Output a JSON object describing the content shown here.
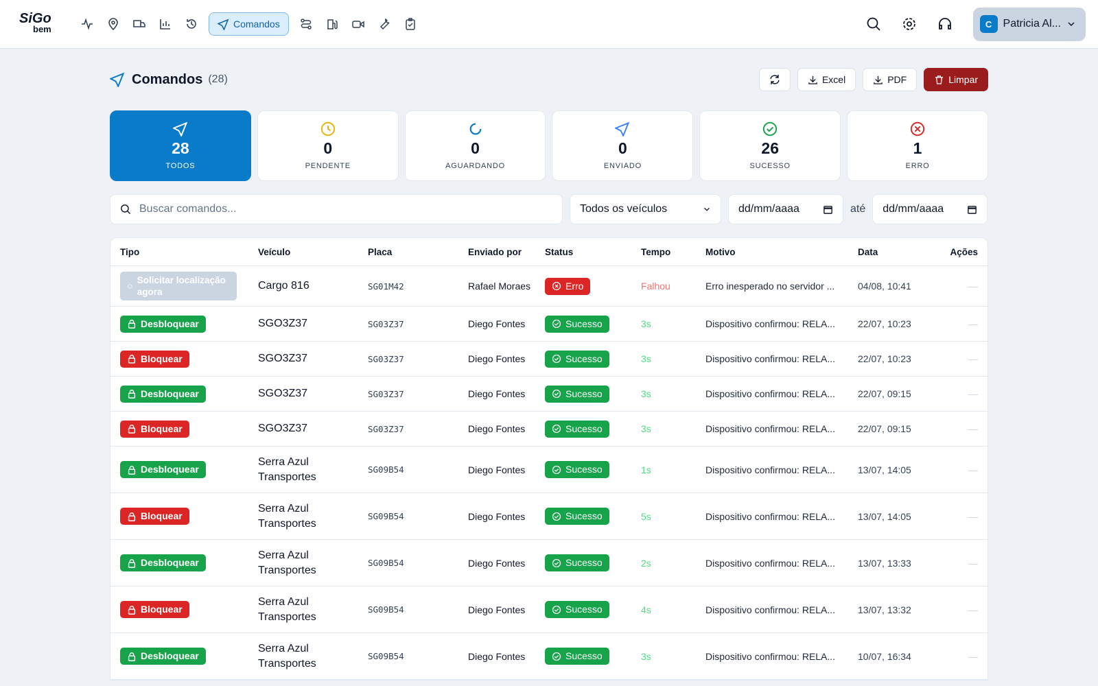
{
  "header": {
    "logo": "SiGo",
    "logo_sub": "bem",
    "active_nav": "Comandos",
    "avatar": "C",
    "user": "Patricia Al..."
  },
  "page": {
    "title": "Comandos",
    "count": "(28)",
    "buttons": [
      "Excel",
      "PDF",
      "Limpar"
    ]
  },
  "stats": [
    {
      "value": 28,
      "label": "TODOS"
    },
    {
      "value": 0,
      "label": "PENDENTE"
    },
    {
      "value": 0,
      "label": "AGUARDANDO"
    },
    {
      "value": 0,
      "label": "ENVIADO"
    },
    {
      "value": 26,
      "label": "SUCESSO"
    },
    {
      "value": 1,
      "label": "ERRO"
    }
  ],
  "filters": {
    "search": "Buscar comandos...",
    "vehicle": "Todos os veículos",
    "date_from": "dd/mm/aaaa",
    "until": "até",
    "date_to": "dd/mm/aaaa"
  },
  "table": {
    "columns": [
      "Tipo",
      "Veículo",
      "Placa",
      "Enviado por",
      "Status",
      "Tempo",
      "Motivo",
      "Data",
      "Ações"
    ],
    "rows": [
      [
        "Solicitar localização agora",
        "Cargo 816",
        "SG01M42",
        "Rafael Moraes",
        "Erro",
        "Falhou",
        "Erro inesperado no servidor ...",
        "04/08, 10:41",
        "—"
      ],
      [
        "Desbloquear",
        "SGO3Z37",
        "SG03Z37",
        "Diego Fontes",
        "Sucesso",
        "3s",
        "Dispositivo confirmou: RELA...",
        "22/07, 10:23",
        "—"
      ],
      [
        "Bloquear",
        "SGO3Z37",
        "SG03Z37",
        "Diego Fontes",
        "Sucesso",
        "3s",
        "Dispositivo confirmou: RELA...",
        "22/07, 10:23",
        "—"
      ],
      [
        "Desbloquear",
        "SGO3Z37",
        "SG03Z37",
        "Diego Fontes",
        "Sucesso",
        "3s",
        "Dispositivo confirmou: RELA...",
        "22/07, 09:15",
        "—"
      ],
      [
        "Bloquear",
        "SGO3Z37",
        "SG03Z37",
        "Diego Fontes",
        "Sucesso",
        "3s",
        "Dispositivo confirmou: RELA...",
        "22/07, 09:15",
        "—"
      ],
      [
        "Desbloquear",
        "Serra Azul Transportes",
        "SG09B54",
        "Diego Fontes",
        "Sucesso",
        "1s",
        "Dispositivo confirmou: RELA...",
        "13/07, 14:05",
        "—"
      ],
      [
        "Bloquear",
        "Serra Azul Transportes",
        "SG09B54",
        "Diego Fontes",
        "Sucesso",
        "5s",
        "Dispositivo confirmou: RELA...",
        "13/07, 14:05",
        "—"
      ],
      [
        "Desbloquear",
        "Serra Azul Transportes",
        "SG09B54",
        "Diego Fontes",
        "Sucesso",
        "2s",
        "Dispositivo confirmou: RELA...",
        "13/07, 13:33",
        "—"
      ],
      [
        "Bloquear",
        "Serra Azul Transportes",
        "SG09B54",
        "Diego Fontes",
        "Sucesso",
        "4s",
        "Dispositivo confirmou: RELA...",
        "13/07, 13:32",
        "—"
      ],
      [
        "Desbloquear",
        "Serra Azul Transportes",
        "SG09B54",
        "Diego Fontes",
        "Sucesso",
        "3s",
        "Dispositivo confirmou: RELA...",
        "10/07, 16:34",
        "—"
      ]
    ]
  }
}
